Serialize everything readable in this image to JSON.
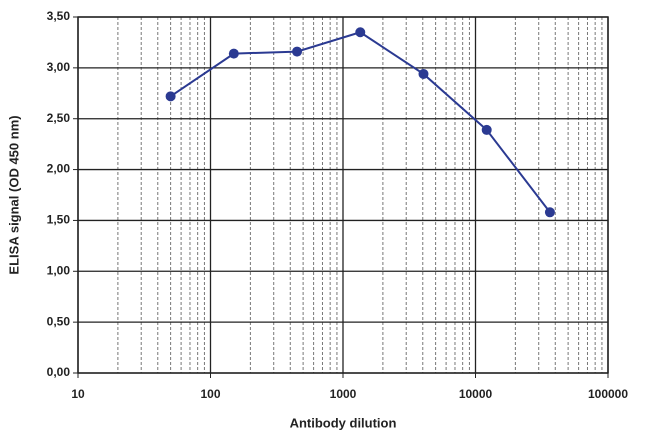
{
  "chart_data": {
    "type": "line",
    "x_label": "Antibody dilution",
    "y_label": "ELISA signal (OD 450 nm)",
    "x": [
      50,
      150,
      450,
      1350,
      4050,
      12150,
      36450
    ],
    "series": [
      {
        "color": "#2b3a92",
        "values": [
          2.72,
          3.14,
          3.16,
          3.35,
          2.94,
          2.39,
          1.58
        ]
      }
    ],
    "x_log": true,
    "xlim": [
      10,
      100000
    ],
    "xticks": [
      10,
      100,
      1000,
      10000,
      100000
    ],
    "ylim": [
      0,
      3.5
    ],
    "yticks": [
      {
        "value": 0,
        "label": "0,00"
      },
      {
        "value": 0.5,
        "label": "0,50"
      },
      {
        "value": 1,
        "label": "1,00"
      },
      {
        "value": 1.5,
        "label": "1,50"
      },
      {
        "value": 2,
        "label": "2,00"
      },
      {
        "value": 2.5,
        "label": "2,50"
      },
      {
        "value": 3,
        "label": "3,00"
      },
      {
        "value": 3.5,
        "label": "3,50"
      }
    ],
    "grid": true,
    "minor_grid": true
  }
}
